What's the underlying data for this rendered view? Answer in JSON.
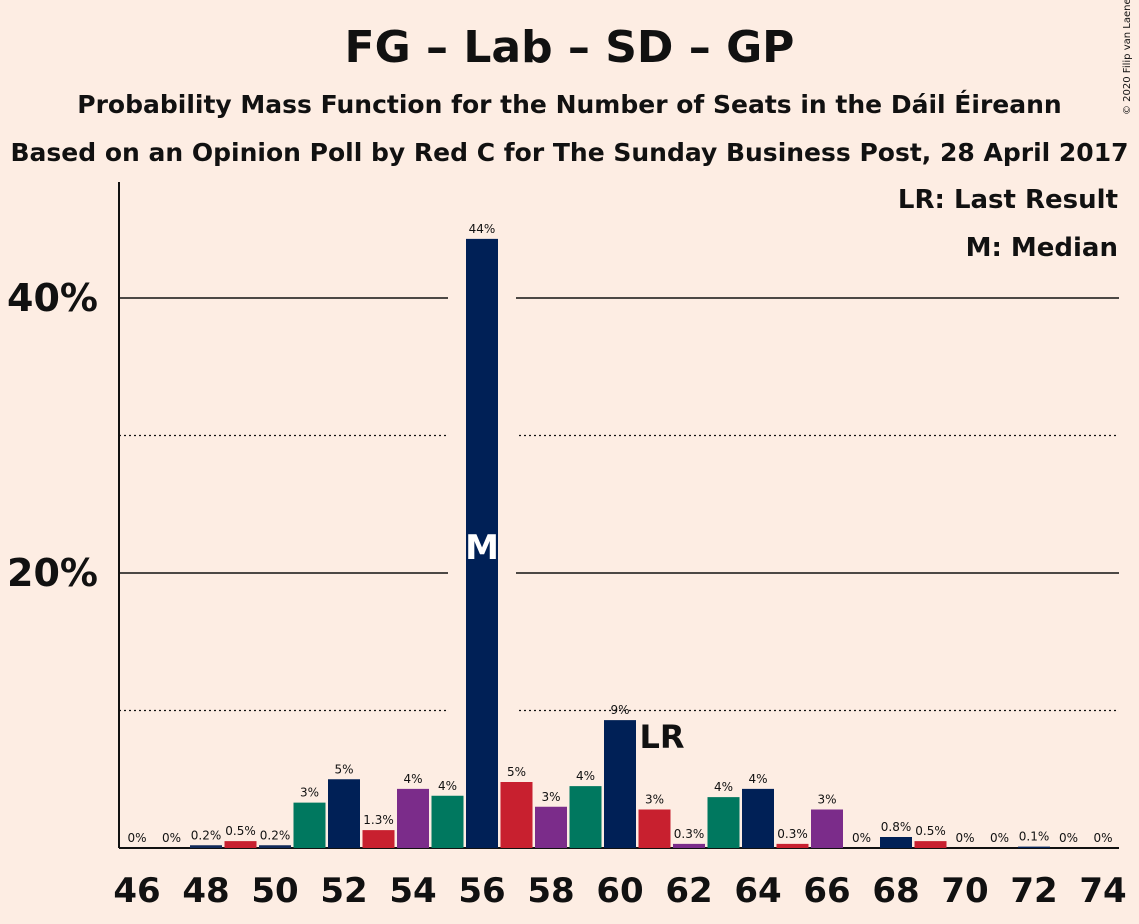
{
  "title": "FG – Lab – SD – GP",
  "subtitle1": "Probability Mass Function for the Number of Seats in the Dáil Éireann",
  "subtitle2": "Based on an Opinion Poll by Red C for The Sunday Business Post, 28 April 2017",
  "legend": {
    "last_result": "LR: Last Result",
    "median": "M: Median"
  },
  "copyright": "© 2020 Filip van Laenen",
  "chart_data": {
    "type": "bar",
    "categories": [
      46,
      47,
      48,
      49,
      50,
      51,
      52,
      53,
      54,
      55,
      56,
      57,
      58,
      59,
      60,
      61,
      62,
      63,
      64,
      65,
      66,
      67,
      68,
      69,
      70,
      71,
      72,
      73,
      74
    ],
    "values": [
      0,
      0,
      0.2,
      0.5,
      0.2,
      3.3,
      5.0,
      1.3,
      4.3,
      3.8,
      44.3,
      4.8,
      3.0,
      4.5,
      9.3,
      2.8,
      0.3,
      3.7,
      4.3,
      0.3,
      2.8,
      0,
      0.8,
      0.5,
      0,
      0,
      0.1,
      0,
      0
    ],
    "labels": [
      "0%",
      "0%",
      "0.2%",
      "0.5%",
      "0.2%",
      "3%",
      "5%",
      "1.3%",
      "4%",
      "4%",
      "44%",
      "5%",
      "3%",
      "4%",
      "9%",
      "3%",
      "0.3%",
      "4%",
      "4%",
      "0.3%",
      "3%",
      "0%",
      "0.8%",
      "0.5%",
      "0%",
      "0%",
      "0.1%",
      "0%",
      "0%"
    ],
    "bar_colors": [
      "#132B5A",
      "#C8202F",
      "#132B5A",
      "#C8202F",
      "#132B5A",
      "#00785F",
      "#002056",
      "#C8202F",
      "#7B2C8A",
      "#00785F",
      "#002056",
      "#C8202F",
      "#7B2C8A",
      "#00785F",
      "#002056",
      "#C8202F",
      "#7B2C8A",
      "#00785F",
      "#002056",
      "#C8202F",
      "#7B2C8A",
      "#00785F",
      "#002056",
      "#C8202F",
      "#7B2C8A",
      "#00785F",
      "#002056",
      "#C8202F",
      "#7B2C8A"
    ],
    "ylim": [
      0,
      48
    ],
    "y_major_ticks": [
      20,
      40
    ],
    "y_major_labels": [
      "20%",
      "40%"
    ],
    "y_minor_gridlines": [
      10,
      30
    ],
    "x_tick_labels": [
      "46",
      "48",
      "50",
      "52",
      "54",
      "56",
      "58",
      "60",
      "62",
      "64",
      "66",
      "68",
      "70",
      "72",
      "74"
    ],
    "median_seat": 56,
    "median_marker": "M",
    "last_result_seat": 61,
    "last_result_marker": "LR"
  }
}
